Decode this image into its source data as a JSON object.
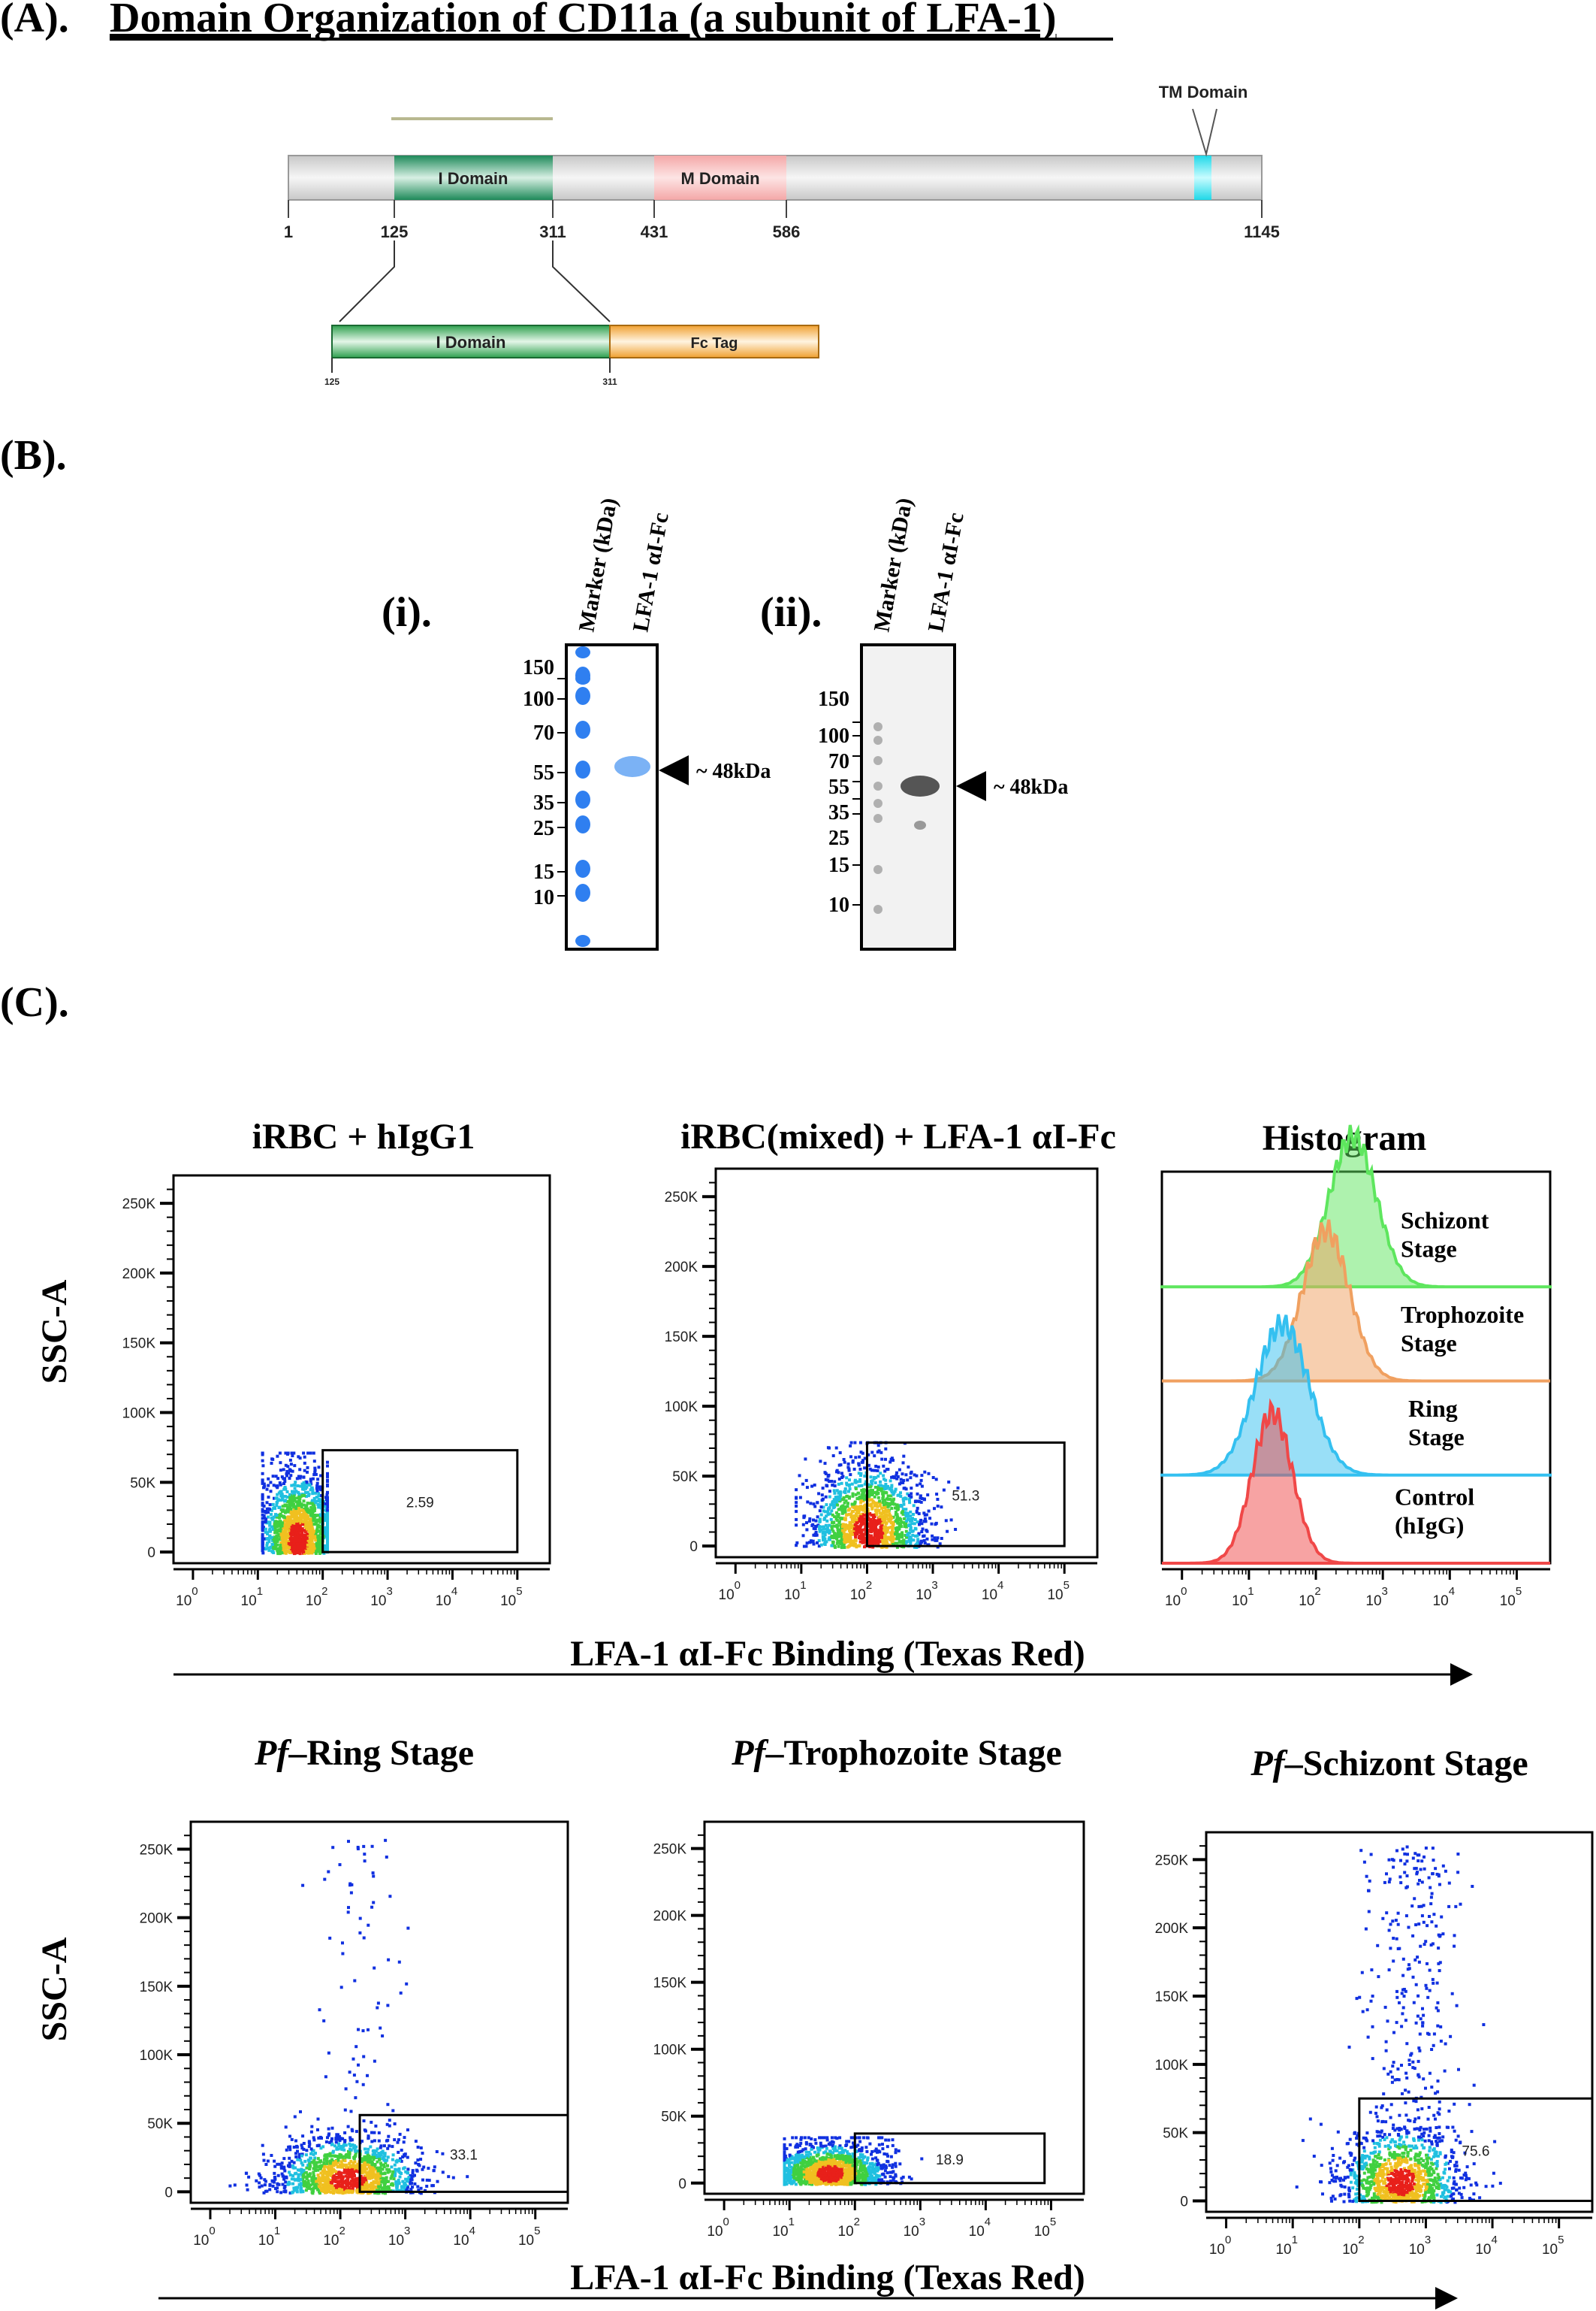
{
  "panel_a": {
    "label": "(A).",
    "title": "Domain Organization  of CD11a (a subunit  of LFA-1)",
    "tm_label": "TM Domain",
    "i_domain": "I Domain",
    "m_domain": "M Domain",
    "fc_tag": "Fc Tag",
    "positions": [
      "1",
      "125",
      "311",
      "431",
      "586",
      "1145"
    ],
    "construct_positions": [
      "125",
      "311"
    ],
    "colors": {
      "i_domain": "#2e9e6e",
      "m_domain": "#f4b4b4",
      "tm": "#22e3f0",
      "fc": "#f6a93a",
      "backbone": "#dcdcdc"
    }
  },
  "panel_b": {
    "label": "(B).",
    "gel_i": {
      "label": "(i).",
      "lanes": [
        "Marker (kDa)",
        "LFA-1 αI-Fc"
      ],
      "markers": [
        "150",
        "100",
        "70",
        "55",
        "35",
        "25",
        "15",
        "10"
      ],
      "band_label": "~ 48kDa"
    },
    "gel_ii": {
      "label": "(ii).",
      "lanes": [
        "Marker (kDa)",
        "LFA-1 αI-Fc"
      ],
      "markers": [
        "150",
        "100",
        "70",
        "55",
        "35",
        "25",
        "15",
        "10"
      ],
      "band_label": "~ 48kDa"
    }
  },
  "panel_c": {
    "label": "(C).",
    "y_axis_label": "SSC-A",
    "x_axis_label_top": "LFA-1 αI-Fc Binding (Texas Red)",
    "x_axis_label_bottom": "LFA-1 αI-Fc Binding (Texas Red)",
    "titles": {
      "p1": "iRBC + hIgG1",
      "p2": "iRBC(mixed) + LFA-1 αI-Fc",
      "hist": "Histogram",
      "p4_italic": "Pf",
      "p4": "–Ring Stage",
      "p5_italic": "Pf",
      "p5": "–Trophozoite Stage",
      "p6_italic": "Pf",
      "p6": "–Schizont Stage"
    }
  },
  "chart_data": [
    {
      "id": "p1",
      "type": "scatter",
      "title": "iRBC + hIgG1",
      "xlabel": "LFA-1 αI-Fc Binding (Texas Red)",
      "ylabel": "SSC-A",
      "xscale": "log",
      "xlim_log10": [
        -0.3,
        5.5
      ],
      "ylim": [
        -8000,
        270000
      ],
      "yticks": [
        "0",
        "50K",
        "100K",
        "150K",
        "200K",
        "250K"
      ],
      "xticks_exp": [
        "0",
        "1",
        "2",
        "3",
        "4",
        "5"
      ],
      "gate": {
        "x_log10": [
          2.0,
          5.0
        ],
        "y": [
          0,
          73000
        ],
        "percent": "2.59"
      },
      "population": {
        "x_log10_mean": 1.6,
        "x_log10_sd": 0.3,
        "x_log10_clip": [
          1.05,
          2.05
        ],
        "y_mean": 10000,
        "y_sd": 25000,
        "y_max": 72000
      }
    },
    {
      "id": "p2",
      "type": "scatter",
      "title": "iRBC(mixed) + LFA-1 αI-Fc",
      "xscale": "log",
      "xlim_log10": [
        -0.3,
        5.5
      ],
      "ylim": [
        -8000,
        270000
      ],
      "yticks": [
        "0",
        "50K",
        "100K",
        "150K",
        "200K",
        "250K"
      ],
      "xticks_exp": [
        "0",
        "1",
        "2",
        "3",
        "4",
        "5"
      ],
      "gate": {
        "x_log10": [
          2.0,
          5.0
        ],
        "y": [
          0,
          74000
        ],
        "percent": "51.3"
      },
      "population": {
        "x_log10_mean": 2.0,
        "x_log10_sd": 0.45,
        "x_log10_clip": [
          0.9,
          3.6
        ],
        "y_mean": 12000,
        "y_sd": 25000,
        "y_max": 75000
      }
    },
    {
      "id": "hist",
      "type": "area",
      "title": "Histogram",
      "xscale": "log",
      "xlim_log10": [
        -0.3,
        5.5
      ],
      "xticks_exp": [
        "0",
        "1",
        "2",
        "3",
        "4",
        "5"
      ],
      "series": [
        {
          "name": "Schizont\nStage",
          "label1": "Schizont",
          "label2": "Stage",
          "color": "#5ee65e",
          "peak_log10": 2.55,
          "sd": 0.35
        },
        {
          "name": "Trophozoite Stage",
          "label1": "Trophozoite",
          "label2": "Stage",
          "color": "#f0a060",
          "peak_log10": 2.15,
          "sd": 0.35
        },
        {
          "name": "Ring Stage",
          "label1": "Ring",
          "label2": "Stage",
          "color": "#34c0f0",
          "peak_log10": 1.5,
          "sd": 0.4
        },
        {
          "name": "Control (hIgG)",
          "label1": "Control",
          "label2": "(hIgG)",
          "color": "#f04848",
          "peak_log10": 1.35,
          "sd": 0.3
        }
      ]
    },
    {
      "id": "p4",
      "type": "scatter",
      "title": "Pf–Ring Stage",
      "xscale": "log",
      "xlim_log10": [
        -0.3,
        5.5
      ],
      "ylim": [
        -8000,
        270000
      ],
      "yticks": [
        "0",
        "50K",
        "100K",
        "150K",
        "200K",
        "250K"
      ],
      "xticks_exp": [
        "0",
        "1",
        "2",
        "3",
        "4",
        "5"
      ],
      "gate": {
        "x_log10": [
          2.3,
          5.5
        ],
        "y": [
          0,
          56000
        ],
        "percent": "33.1"
      },
      "population": {
        "x_log10_mean": 2.1,
        "x_log10_sd": 0.55,
        "x_log10_clip": [
          0.1,
          4.5
        ],
        "y_mean": 10000,
        "y_sd": 16000,
        "y_max": 260000
      }
    },
    {
      "id": "p5",
      "type": "scatter",
      "title": "Pf–Trophozoite Stage",
      "xscale": "log",
      "xlim_log10": [
        -0.3,
        5.5
      ],
      "ylim": [
        -8000,
        270000
      ],
      "yticks": [
        "0",
        "50K",
        "100K",
        "150K",
        "200K",
        "250K"
      ],
      "xticks_exp": [
        "0",
        "1",
        "2",
        "3",
        "4",
        "5"
      ],
      "gate": {
        "x_log10": [
          2.0,
          4.9
        ],
        "y": [
          0,
          37000
        ],
        "percent": "18.9"
      },
      "population": {
        "x_log10_mean": 1.6,
        "x_log10_sd": 0.45,
        "x_log10_clip": [
          0.9,
          3.0
        ],
        "y_mean": 8000,
        "y_sd": 12000,
        "y_max": 35000
      }
    },
    {
      "id": "p6",
      "type": "scatter",
      "title": "Pf–Schizont Stage",
      "xscale": "log",
      "xlim_log10": [
        -0.3,
        5.5
      ],
      "ylim": [
        -8000,
        270000
      ],
      "yticks": [
        "0",
        "50K",
        "100K",
        "150K",
        "200K",
        "250K"
      ],
      "xticks_exp": [
        "0",
        "1",
        "2",
        "3",
        "4",
        "5"
      ],
      "gate": {
        "x_log10": [
          2.0,
          5.5
        ],
        "y": [
          0,
          75000
        ],
        "percent": "75.6"
      },
      "population": {
        "x_log10_mean": 2.6,
        "x_log10_sd": 0.45,
        "x_log10_clip": [
          0.2,
          5.0
        ],
        "y_mean": 15000,
        "y_sd": 20000,
        "y_max": 262000
      }
    }
  ]
}
